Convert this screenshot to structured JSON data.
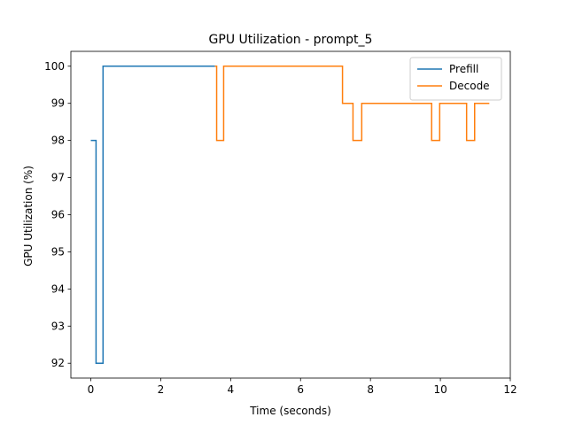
{
  "chart_data": {
    "type": "line",
    "title": "GPU Utilization - prompt_5",
    "xlabel": "Time (seconds)",
    "ylabel": "GPU Utilization (%)",
    "xlim": [
      -0.57,
      12.0
    ],
    "ylim": [
      91.6,
      100.4
    ],
    "xticks": [
      0,
      2,
      4,
      6,
      8,
      10,
      12
    ],
    "yticks": [
      92,
      93,
      94,
      95,
      96,
      97,
      98,
      99,
      100
    ],
    "grid": false,
    "legend_position": "top-right",
    "series": [
      {
        "name": "Prefill",
        "color": "#1f77b4",
        "x": [
          0.0,
          0.15,
          0.15,
          0.35,
          0.35,
          3.55
        ],
        "y": [
          98,
          98,
          92,
          92,
          100,
          100
        ]
      },
      {
        "name": "Decode",
        "color": "#ff7f0e",
        "x": [
          3.55,
          3.6,
          3.6,
          3.8,
          3.8,
          7.2,
          7.2,
          7.5,
          7.5,
          7.75,
          7.75,
          9.75,
          9.75,
          9.98,
          9.98,
          10.75,
          10.75,
          10.98,
          10.98,
          11.4
        ],
        "y": [
          100,
          100,
          98,
          98,
          100,
          100,
          99,
          99,
          98,
          98,
          99,
          99,
          98,
          98,
          99,
          99,
          98,
          98,
          99,
          99
        ]
      }
    ]
  }
}
